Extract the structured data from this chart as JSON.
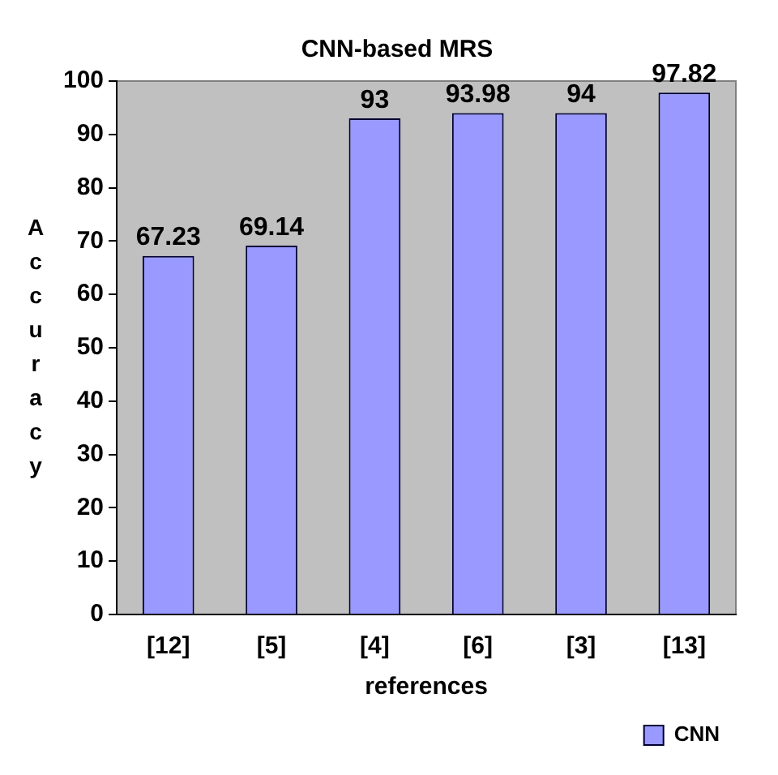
{
  "chart_data": {
    "type": "bar",
    "title": "CNN-based MRS",
    "xlabel": "references",
    "ylabel": "Accuracy",
    "categories": [
      "[12]",
      "[5]",
      "[4]",
      "[6]",
      "[3]",
      "[13]"
    ],
    "series": [
      {
        "name": "CNN",
        "color": "#9999ff",
        "values": [
          67.23,
          69.14,
          93,
          93.98,
          94,
          97.82
        ]
      }
    ],
    "ylim": [
      0,
      100
    ],
    "yticks": [
      0,
      10,
      20,
      30,
      40,
      50,
      60,
      70,
      80,
      90,
      100
    ],
    "grid": false,
    "legend": "bottom right",
    "data_labels": true
  }
}
